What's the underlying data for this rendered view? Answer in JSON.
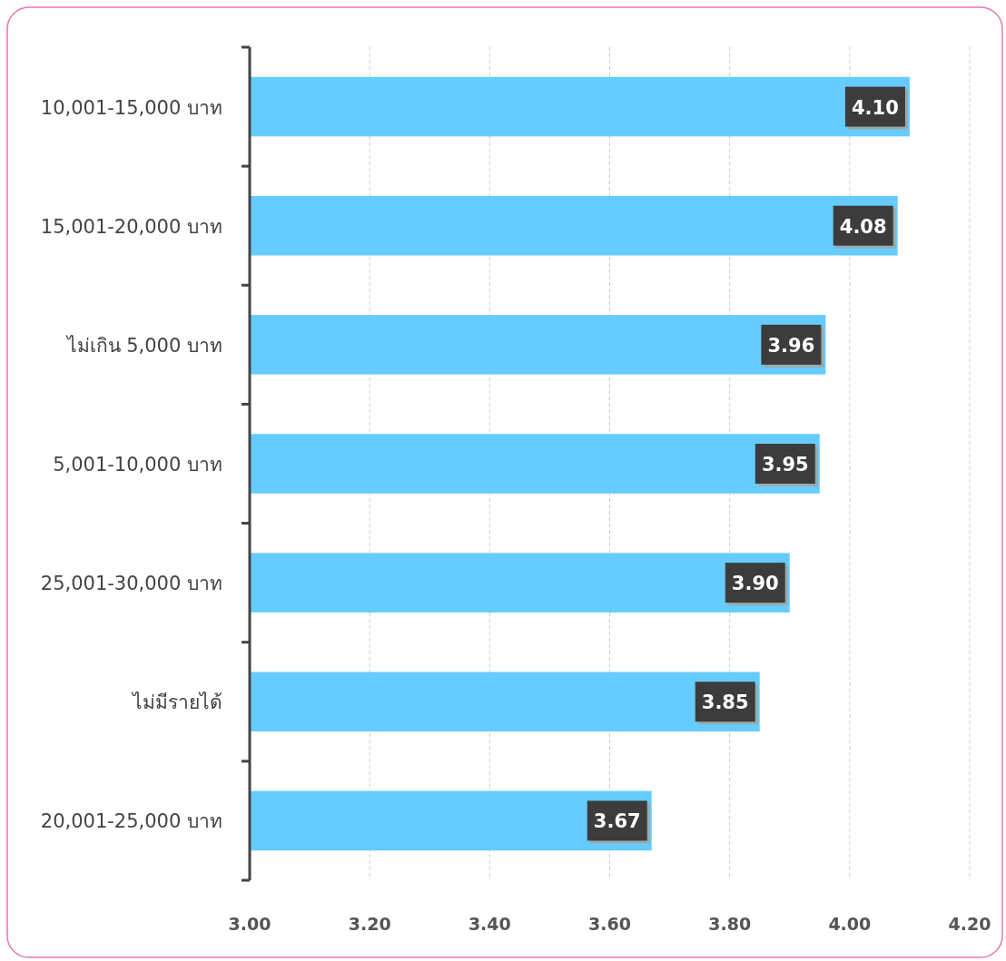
{
  "chart_data": {
    "type": "bar",
    "orientation": "horizontal",
    "categories": [
      "10,001-15,000 บาท",
      "15,001-20,000 บาท",
      "ไม่เกิน 5,000 บาท",
      "5,001-10,000 บาท",
      "25,001-30,000 บาท",
      "ไม่มีรายได้",
      "20,001-25,000 บาท"
    ],
    "values": [
      4.1,
      4.08,
      3.96,
      3.95,
      3.9,
      3.85,
      3.67
    ],
    "value_labels": [
      "4.10",
      "4.08",
      "3.96",
      "3.95",
      "3.90",
      "3.85",
      "3.67"
    ],
    "color": "#66ccff",
    "xlim": [
      3.0,
      4.2
    ],
    "xticks": [
      {
        "value": 3.0,
        "label": "3.00"
      },
      {
        "value": 3.2,
        "label": "3.20"
      },
      {
        "value": 3.4,
        "label": "3.40"
      },
      {
        "value": 3.6,
        "label": "3.60"
      },
      {
        "value": 3.8,
        "label": "3.80"
      },
      {
        "value": 4.0,
        "label": "4.00"
      },
      {
        "value": 4.2,
        "label": "4.20"
      }
    ],
    "grid": "x"
  }
}
